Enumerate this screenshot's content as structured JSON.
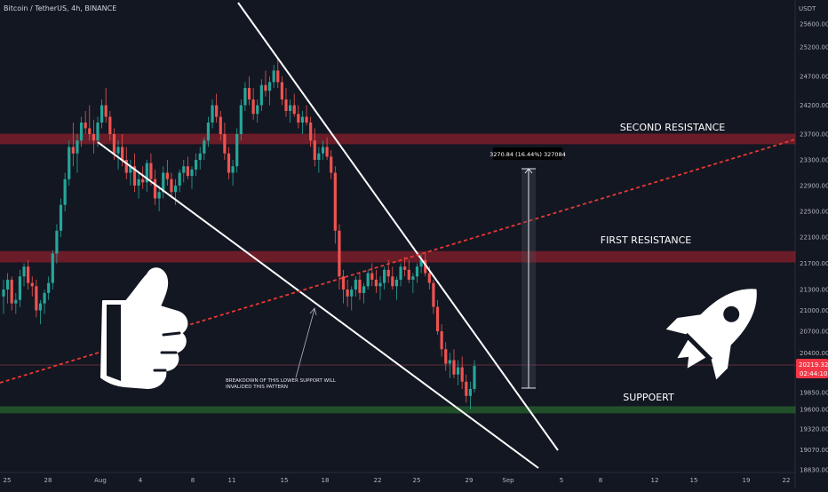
{
  "header": {
    "symbol": "Bitcoin / TetherUS, 4h, BINANCE",
    "currency": "USDT"
  },
  "chart_data": {
    "type": "candlestick",
    "title": "Bitcoin / TetherUS, 4h, BINANCE",
    "y_axis": {
      "unit": "USDT",
      "ylim": [
        18700,
        25800
      ],
      "ticks": [
        "25600.00",
        "25200.00",
        "24700.00",
        "24200.00",
        "23700.00",
        "23300.00",
        "22900.00",
        "22500.00",
        "22100.00",
        "21700.00",
        "21300.00",
        "21000.00",
        "20700.00",
        "20400.00",
        "19850.00",
        "19600.00",
        "19320.00",
        "19070.00",
        "18830.00"
      ]
    },
    "x_axis": {
      "ticks": [
        "25",
        "28",
        "Aug",
        "4",
        "8",
        "11",
        "15",
        "18",
        "22",
        "25",
        "29",
        "Sep",
        "5",
        "8",
        "12",
        "15",
        "19",
        "22"
      ]
    },
    "current_price": {
      "value": "20219.32",
      "countdown": "02:44:10"
    },
    "zones": [
      {
        "label": "SECOND RESISTANCE",
        "low": 23550,
        "high": 23700,
        "color": "#b2212e"
      },
      {
        "label": "FIRST RESISTANCE",
        "low": 21720,
        "high": 21880,
        "color": "#b2212e"
      },
      {
        "label": "SUPPOERT",
        "low": 19550,
        "high": 19640,
        "color": "#2e7d32"
      }
    ],
    "measurement": {
      "label": "3270.84 (16.44%) 327084"
    },
    "annotation": "BREAKDOWN OF THIS LOWER SUPPORT WILL INVALIDED THIS PATTERN",
    "candles": [
      [
        21200,
        21450,
        20950,
        21300
      ],
      [
        21300,
        21550,
        21100,
        21450
      ],
      [
        21450,
        21500,
        21000,
        21100
      ],
      [
        21100,
        21250,
        20950,
        21150
      ],
      [
        21150,
        21600,
        21050,
        21500
      ],
      [
        21500,
        21700,
        21350,
        21650
      ],
      [
        21650,
        21750,
        21300,
        21400
      ],
      [
        21400,
        21500,
        21200,
        21350
      ],
      [
        21350,
        21450,
        20900,
        21000
      ],
      [
        21000,
        21150,
        20800,
        21100
      ],
      [
        21100,
        21300,
        20950,
        21250
      ],
      [
        21250,
        21500,
        21150,
        21400
      ],
      [
        21400,
        21900,
        21300,
        21850
      ],
      [
        21850,
        22300,
        21700,
        22200
      ],
      [
        22200,
        22700,
        22100,
        22600
      ],
      [
        22600,
        23100,
        22500,
        23000
      ],
      [
        23000,
        23600,
        22900,
        23500
      ],
      [
        23500,
        23900,
        23200,
        23400
      ],
      [
        23400,
        23700,
        23100,
        23600
      ],
      [
        23600,
        24000,
        23500,
        23900
      ],
      [
        23900,
        24100,
        23700,
        23800
      ],
      [
        23800,
        24200,
        23600,
        23700
      ],
      [
        23700,
        23950,
        23400,
        23600
      ],
      [
        23600,
        24000,
        23500,
        23900
      ],
      [
        23900,
        24300,
        23800,
        24200
      ],
      [
        24200,
        24500,
        23900,
        24000
      ],
      [
        24000,
        24100,
        23600,
        23700
      ],
      [
        23700,
        23800,
        23300,
        23400
      ],
      [
        23400,
        23600,
        23150,
        23500
      ],
      [
        23500,
        23700,
        23200,
        23300
      ],
      [
        23300,
        23500,
        23000,
        23100
      ],
      [
        23100,
        23300,
        22900,
        23200
      ],
      [
        23200,
        23400,
        22800,
        22900
      ],
      [
        22900,
        23100,
        22700,
        23000
      ],
      [
        23000,
        23200,
        22850,
        22950
      ],
      [
        22950,
        23300,
        22800,
        23250
      ],
      [
        23250,
        23400,
        22900,
        23000
      ],
      [
        23000,
        23150,
        22600,
        22700
      ],
      [
        22700,
        22900,
        22500,
        22800
      ],
      [
        22800,
        23200,
        22700,
        23100
      ],
      [
        23100,
        23300,
        22900,
        23000
      ],
      [
        23000,
        23100,
        22700,
        22800
      ],
      [
        22800,
        23000,
        22600,
        22900
      ],
      [
        22900,
        23150,
        22800,
        23100
      ],
      [
        23100,
        23300,
        22950,
        23200
      ],
      [
        23200,
        23350,
        23000,
        23050
      ],
      [
        23050,
        23200,
        22850,
        23150
      ],
      [
        23150,
        23400,
        23050,
        23300
      ],
      [
        23300,
        23500,
        23150,
        23400
      ],
      [
        23400,
        23650,
        23300,
        23600
      ],
      [
        23600,
        24000,
        23500,
        23900
      ],
      [
        23900,
        24300,
        23800,
        24200
      ],
      [
        24200,
        24400,
        23900,
        24000
      ],
      [
        24000,
        24100,
        23600,
        23700
      ],
      [
        23700,
        23900,
        23300,
        23400
      ],
      [
        23400,
        23500,
        23000,
        23100
      ],
      [
        23100,
        23300,
        22900,
        23200
      ],
      [
        23200,
        23800,
        23100,
        23700
      ],
      [
        23700,
        24300,
        23600,
        24200
      ],
      [
        24200,
        24600,
        24100,
        24500
      ],
      [
        24500,
        24700,
        24200,
        24300
      ],
      [
        24300,
        24500,
        23950,
        24050
      ],
      [
        24050,
        24300,
        23900,
        24200
      ],
      [
        24200,
        24650,
        24100,
        24550
      ],
      [
        24550,
        24800,
        24350,
        24450
      ],
      [
        24450,
        24700,
        24200,
        24600
      ],
      [
        24600,
        24900,
        24500,
        24800
      ],
      [
        24800,
        25000,
        24500,
        24600
      ],
      [
        24600,
        24700,
        24200,
        24300
      ],
      [
        24300,
        24500,
        24000,
        24100
      ],
      [
        24100,
        24300,
        23900,
        24200
      ],
      [
        24200,
        24400,
        24000,
        24050
      ],
      [
        24050,
        24200,
        23800,
        23900
      ],
      [
        23900,
        24100,
        23700,
        24000
      ],
      [
        24000,
        24200,
        23850,
        23900
      ],
      [
        23900,
        24000,
        23500,
        23600
      ],
      [
        23600,
        23800,
        23200,
        23300
      ],
      [
        23300,
        23500,
        23100,
        23400
      ],
      [
        23400,
        23600,
        23300,
        23500
      ],
      [
        23500,
        23650,
        23300,
        23350
      ],
      [
        23350,
        23450,
        23000,
        23100
      ],
      [
        23100,
        23200,
        22000,
        22200
      ],
      [
        22200,
        22300,
        21300,
        21500
      ],
      [
        21500,
        21600,
        21100,
        21300
      ],
      [
        21300,
        21450,
        21050,
        21200
      ],
      [
        21200,
        21350,
        21000,
        21300
      ],
      [
        21300,
        21500,
        21200,
        21450
      ],
      [
        21450,
        21550,
        21150,
        21250
      ],
      [
        21250,
        21400,
        21100,
        21350
      ],
      [
        21350,
        21600,
        21300,
        21550
      ],
      [
        21550,
        21700,
        21350,
        21450
      ],
      [
        21450,
        21600,
        21250,
        21350
      ],
      [
        21350,
        21500,
        21150,
        21400
      ],
      [
        21400,
        21650,
        21300,
        21600
      ],
      [
        21600,
        21750,
        21400,
        21500
      ],
      [
        21500,
        21650,
        21300,
        21350
      ],
      [
        21350,
        21500,
        21150,
        21450
      ],
      [
        21450,
        21700,
        21350,
        21650
      ],
      [
        21650,
        21800,
        21500,
        21600
      ],
      [
        21600,
        21750,
        21400,
        21450
      ],
      [
        21450,
        21550,
        21250,
        21500
      ],
      [
        21500,
        21700,
        21400,
        21650
      ],
      [
        21650,
        21850,
        21550,
        21750
      ],
      [
        21750,
        21850,
        21500,
        21550
      ],
      [
        21550,
        21650,
        21300,
        21400
      ],
      [
        21400,
        21450,
        20950,
        21050
      ],
      [
        21050,
        21150,
        20650,
        20700
      ],
      [
        20700,
        20800,
        20350,
        20450
      ],
      [
        20450,
        20550,
        20150,
        20250
      ],
      [
        20250,
        20400,
        20050,
        20300
      ],
      [
        20300,
        20450,
        20050,
        20100
      ],
      [
        20100,
        20300,
        19950,
        20200
      ],
      [
        20200,
        20350,
        19900,
        20000
      ],
      [
        20000,
        20100,
        19700,
        19800
      ],
      [
        19800,
        20000,
        19600,
        19900
      ],
      [
        19900,
        20300,
        19850,
        20219
      ]
    ]
  }
}
